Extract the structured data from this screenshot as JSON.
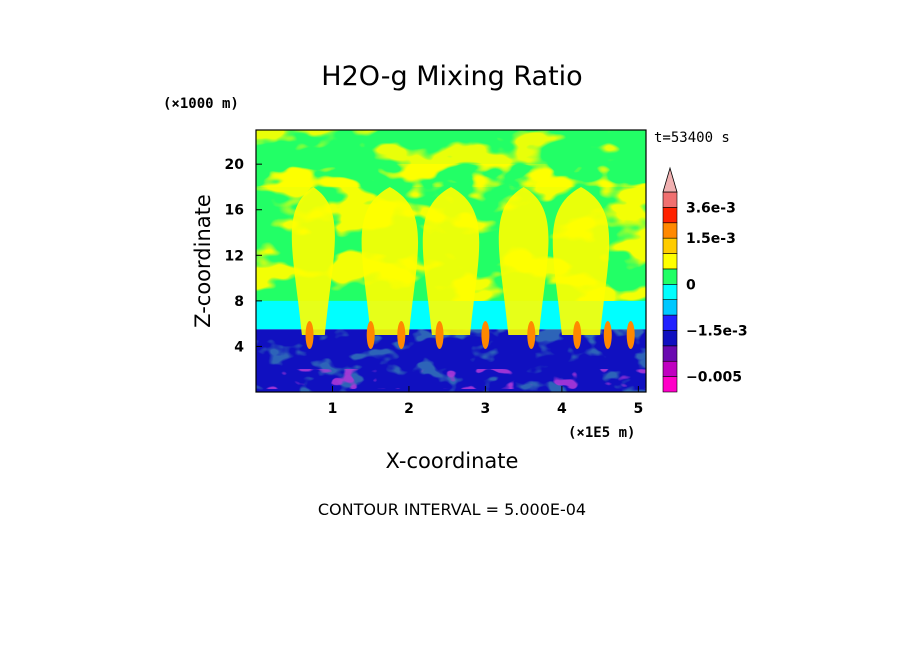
{
  "chart_data": {
    "type": "heatmap",
    "title": "H2O-g Mixing Ratio",
    "xlabel": "X-coordinate",
    "ylabel": "Z-coordinate",
    "x_unit": "(×1E5 m)",
    "y_unit": "(×1000 m)",
    "time_label": "t=53400 s",
    "footer": "CONTOUR INTERVAL = 5.000E-04",
    "xlim": [
      0,
      5.1
    ],
    "ylim": [
      0,
      23
    ],
    "x_ticks": [
      {
        "value": 1,
        "label": "1"
      },
      {
        "value": 2,
        "label": "2"
      },
      {
        "value": 3,
        "label": "3"
      },
      {
        "value": 4,
        "label": "4"
      },
      {
        "value": 5,
        "label": "5"
      }
    ],
    "y_ticks": [
      {
        "value": 4,
        "label": "4"
      },
      {
        "value": 8,
        "label": "8"
      },
      {
        "value": 12,
        "label": "12"
      },
      {
        "value": 16,
        "label": "16"
      },
      {
        "value": 20,
        "label": "20"
      }
    ],
    "colorbar": {
      "levels": [
        {
          "color": "#ff00c8",
          "min": -0.0065,
          "max": -0.005
        },
        {
          "color": "#c000c0",
          "min": -0.005,
          "max": -0.0035
        },
        {
          "color": "#6a0ab0",
          "min": -0.0035,
          "max": -0.002
        },
        {
          "color": "#1010c0",
          "min": -0.002,
          "max": -0.0015
        },
        {
          "color": "#2020ff",
          "min": -0.0015,
          "max": -0.001
        },
        {
          "color": "#00c8ff",
          "min": -0.001,
          "max": -0.0005
        },
        {
          "color": "#00ffff",
          "min": -0.0005,
          "max": 0
        },
        {
          "color": "#22ff66",
          "min": 0,
          "max": 0.0005
        },
        {
          "color": "#ffff00",
          "min": 0.0005,
          "max": 0.001
        },
        {
          "color": "#ffcc00",
          "min": 0.001,
          "max": 0.0015
        },
        {
          "color": "#ff8800",
          "min": 0.0015,
          "max": 0.002
        },
        {
          "color": "#ff2200",
          "min": 0.002,
          "max": 0.0036
        },
        {
          "color": "#f07070",
          "min": 0.0036,
          "max": 0.004
        },
        {
          "color": "#f0b0b0",
          "min": 0.004,
          "max": null
        }
      ],
      "labels": [
        {
          "value": 0.0036,
          "label": "3.6e-3"
        },
        {
          "value": 0.0015,
          "label": "1.5e-3"
        },
        {
          "value": 0,
          "label": "0"
        },
        {
          "value": -0.0015,
          "label": "−1.5e-3"
        },
        {
          "value": -0.005,
          "label": "−0.005"
        }
      ],
      "open_ended_top": true
    },
    "field_regions": [
      {
        "name": "upper-background",
        "z": [
          6,
          23
        ],
        "value": 0.0003
      },
      {
        "name": "upper-banding",
        "z": [
          18,
          23
        ],
        "value": 0.0007
      },
      {
        "name": "mid-level-plumes",
        "z": [
          8,
          20
        ],
        "value": 0.0008
      },
      {
        "name": "cyan-layer",
        "z": [
          5.5,
          8
        ],
        "value": -0.0003
      },
      {
        "name": "boundary-layer",
        "z": [
          0,
          5.5
        ],
        "value": -0.0018
      },
      {
        "name": "deep-minima",
        "z": [
          0.3,
          2
        ],
        "value": -0.004
      },
      {
        "name": "moist-updraft-cores",
        "z": [
          2,
          8
        ],
        "value": 0.0018
      }
    ]
  }
}
